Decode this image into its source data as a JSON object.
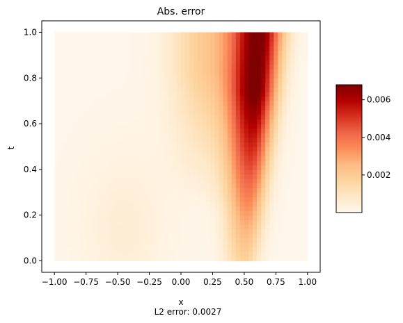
{
  "chart_data": {
    "type": "heatmap",
    "title": "Abs. error",
    "xlabel": "x",
    "ylabel": "t",
    "xlim": [
      -1.1,
      1.1
    ],
    "ylim": [
      -0.05,
      1.05
    ],
    "data_extent": {
      "x": [
        -1.0,
        1.0
      ],
      "t": [
        0.0,
        1.0
      ]
    },
    "xticks": [
      -1.0,
      -0.75,
      -0.5,
      -0.25,
      0.0,
      0.25,
      0.5,
      0.75,
      1.0
    ],
    "xtick_labels": [
      "−1.00",
      "−0.75",
      "−0.50",
      "−0.25",
      "0.00",
      "0.25",
      "0.50",
      "0.75",
      "1.00"
    ],
    "yticks": [
      0.0,
      0.2,
      0.4,
      0.6,
      0.8,
      1.0
    ],
    "ytick_labels": [
      "0.0",
      "0.2",
      "0.4",
      "0.6",
      "0.8",
      "1.0"
    ],
    "grid": false,
    "colormap": "OrRd",
    "colormap_stops": [
      "#fff7ec",
      "#fee8c8",
      "#fdd49e",
      "#fdbb84",
      "#fc8d59",
      "#ef6548",
      "#d7301f",
      "#b30000",
      "#7f0000"
    ],
    "colorbar": {
      "min": 0.0,
      "max": 0.0068,
      "ticks": [
        0.002,
        0.004,
        0.006
      ],
      "tick_labels": [
        "0.002",
        "0.004",
        "0.006"
      ]
    },
    "peak_error": {
      "x": 0.62,
      "t": 0.72,
      "value": 0.0068
    },
    "footer_label": "L2 error: 0.0027"
  }
}
